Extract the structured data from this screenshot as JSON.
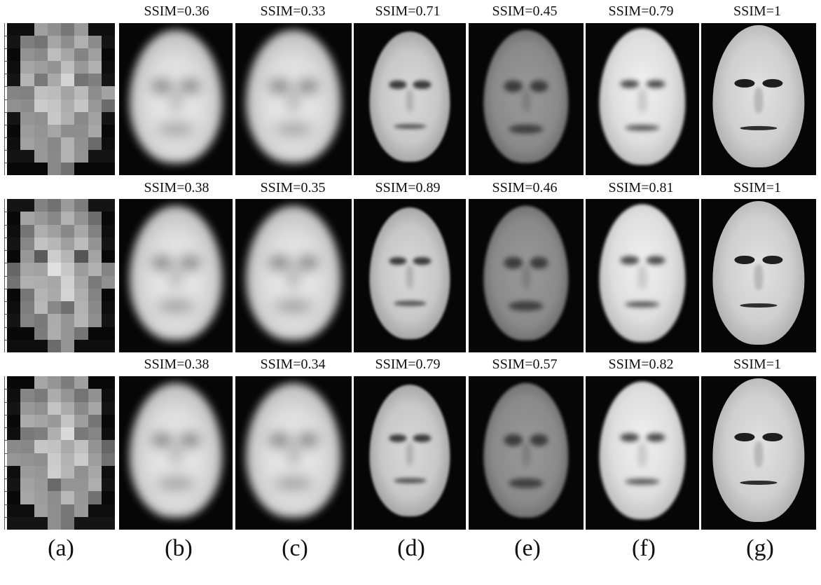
{
  "rows": [
    {
      "ssim": [
        "SSIM=0.36",
        "SSIM=0.33",
        "SSIM=0.71",
        "SSIM=0.45",
        "SSIM=0.79",
        "SSIM=1"
      ]
    },
    {
      "ssim": [
        "SSIM=0.38",
        "SSIM=0.35",
        "SSIM=0.89",
        "SSIM=0.46",
        "SSIM=0.81",
        "SSIM=1"
      ]
    },
    {
      "ssim": [
        "SSIM=0.38",
        "SSIM=0.34",
        "SSIM=0.79",
        "SSIM=0.57",
        "SSIM=0.82",
        "SSIM=1"
      ]
    }
  ],
  "column_labels": [
    "(a)",
    "(b)",
    "(c)",
    "(d)",
    "(e)",
    "(f)",
    "(g)"
  ]
}
